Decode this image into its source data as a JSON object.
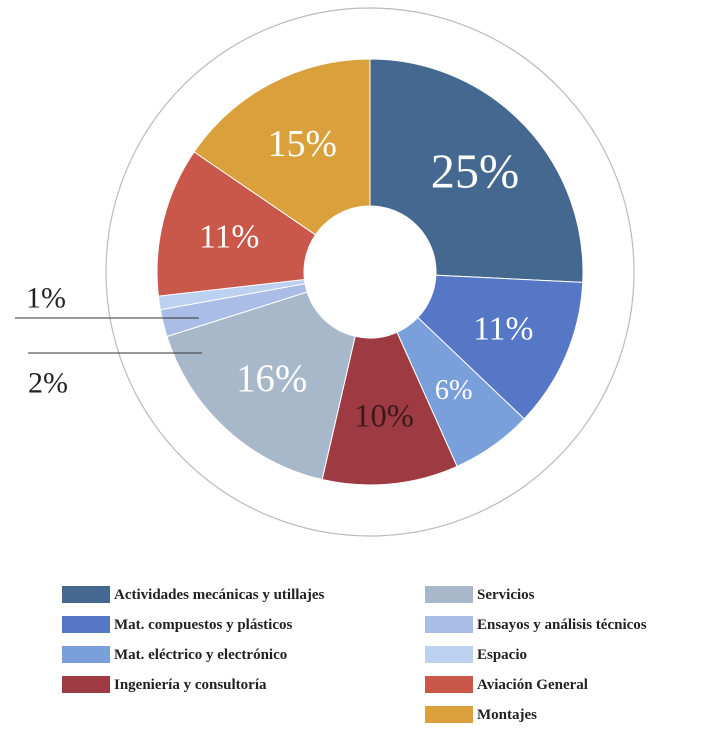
{
  "chart_data": {
    "type": "donut",
    "categories": [
      "Actividades mecánicas y utillajes",
      "Mat. compuestos y plásticos",
      "Mat. eléctrico y electrónico",
      "Ingeniería y consultoría",
      "Servicios",
      "Ensayos y análisis técnicos",
      "Espacio",
      "Aviación General",
      "Montajes"
    ],
    "values": [
      25,
      11,
      6,
      10,
      16,
      2,
      1,
      11,
      15
    ],
    "value_labels": [
      "25%",
      "11%",
      "6%",
      "10%",
      "16%",
      "2%",
      "1%",
      "11%",
      "15%"
    ],
    "colors": [
      "#44688f",
      "#5577c5",
      "#7aa0db",
      "#9e3a41",
      "#a8b8cb",
      "#a9bde6",
      "#bcd0f0",
      "#c9574a",
      "#d9a03c"
    ]
  }
}
